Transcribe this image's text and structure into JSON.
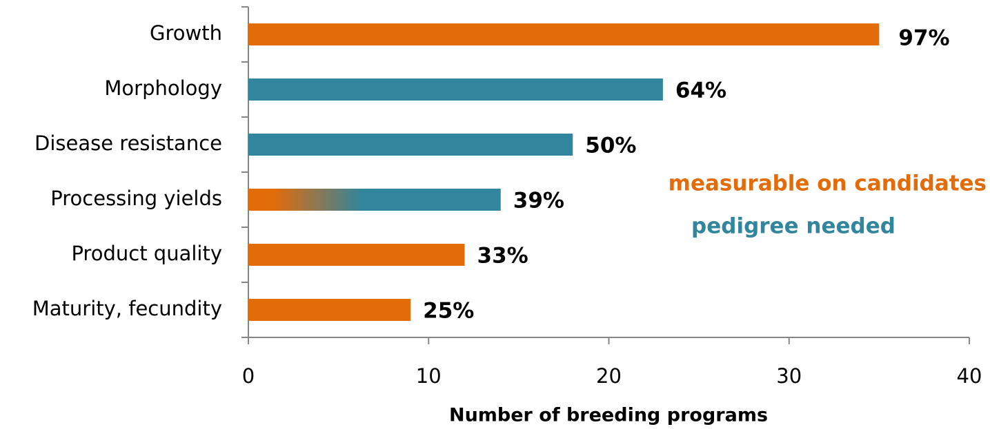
{
  "chart_data": {
    "type": "hbar",
    "categories": [
      "Growth",
      "Morphology",
      "Disease resistance",
      "Processing yields",
      "Product quality",
      "Maturity, fecundity"
    ],
    "values": [
      35,
      23,
      18,
      14,
      12,
      9
    ],
    "value_labels": [
      "97%",
      "64%",
      "50%",
      "39%",
      "33%",
      "25%"
    ],
    "colors": [
      "#e36c0a",
      "#31859c",
      "#31859c",
      [
        "#e36c0a",
        "#31859c"
      ],
      "#e36c0a",
      "#e36c0a"
    ],
    "xlabel": "Number of breeding programs",
    "xlim": [
      0,
      40
    ],
    "xticks": [
      0,
      10,
      20,
      30,
      40
    ],
    "legend": [
      {
        "label": "measurable on candidates",
        "color": "#e36c0a"
      },
      {
        "label": "pedigree needed",
        "color": "#31859c"
      }
    ]
  }
}
